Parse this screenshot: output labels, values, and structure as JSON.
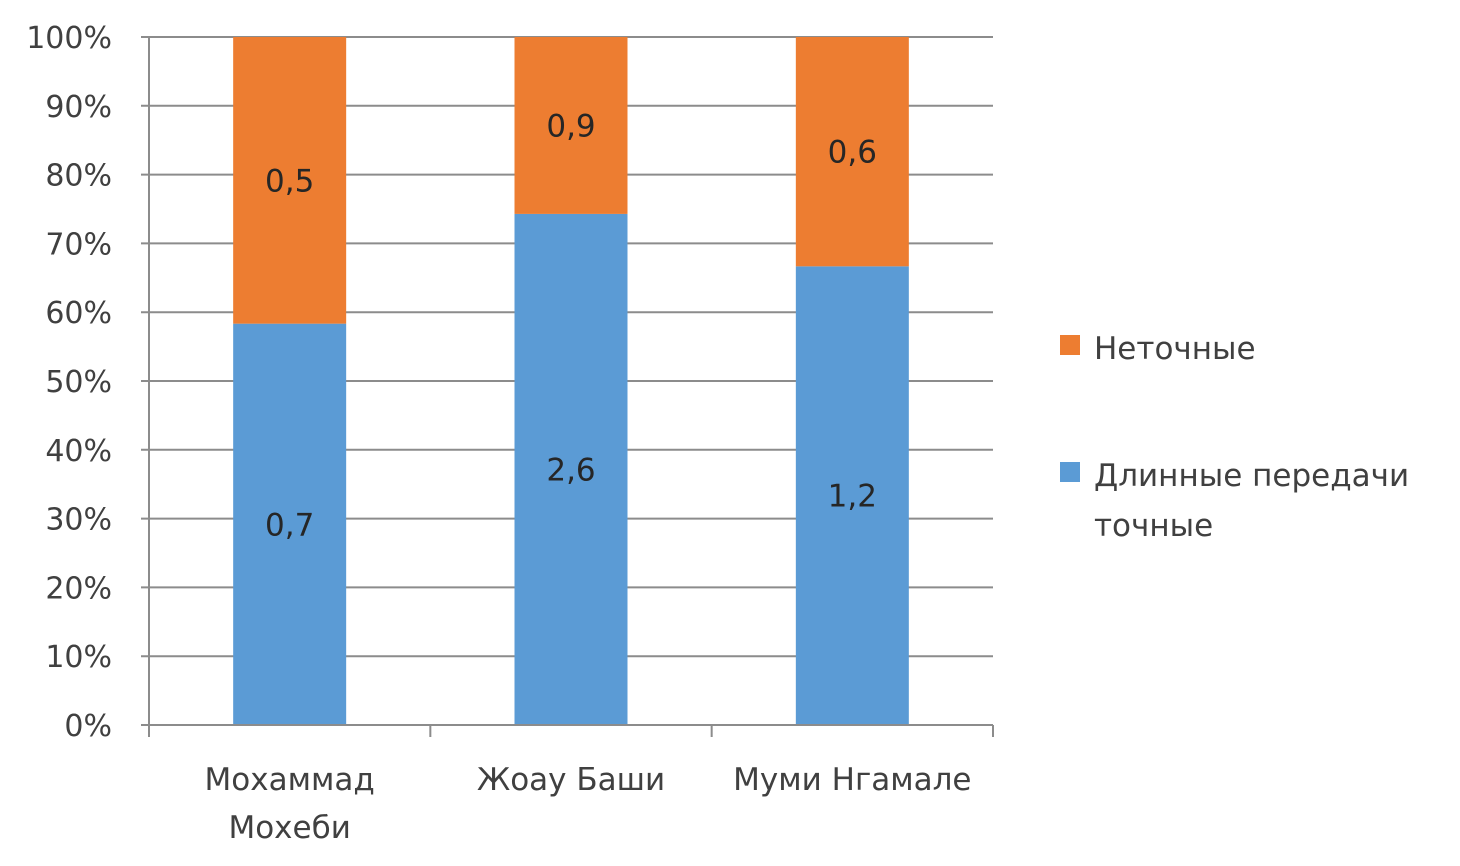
{
  "chart_data": {
    "type": "bar",
    "stacked": "percent",
    "categories": [
      [
        "Мохаммад",
        "Мохеби"
      ],
      [
        "Жоау Баши"
      ],
      [
        "Муми Нгамале"
      ]
    ],
    "series": [
      {
        "name": "Длинные передачи точные",
        "values": [
          0.7,
          2.6,
          1.2
        ],
        "labels": [
          "0,7",
          "2,6",
          "1,2"
        ],
        "color": "#5b9bd5"
      },
      {
        "name": "Неточные",
        "values": [
          0.5,
          0.9,
          0.6
        ],
        "labels": [
          "0,5",
          "0,9",
          "0,6"
        ],
        "color": "#ed7d31"
      }
    ],
    "ylim": [
      0,
      100
    ],
    "yticks": [
      "0%",
      "10%",
      "20%",
      "30%",
      "40%",
      "50%",
      "60%",
      "70%",
      "80%",
      "90%",
      "100%"
    ],
    "grid": true,
    "legend": {
      "position": "right",
      "entries": [
        {
          "lines": [
            "Неточные"
          ],
          "color": "#ed7d31"
        },
        {
          "lines": [
            "Длинные передачи",
            "точные"
          ],
          "color": "#5b9bd5"
        }
      ]
    },
    "gridline_color": "#8c8c8c",
    "axis_color": "#8c8c8c"
  }
}
